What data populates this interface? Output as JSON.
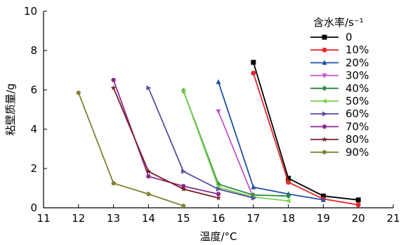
{
  "chart_data": {
    "type": "line",
    "title": "",
    "xlabel": "温度/°C",
    "ylabel": "粘壁质量/g",
    "xlim": [
      11,
      21
    ],
    "ylim": [
      0,
      10
    ],
    "xticks": [
      11,
      12,
      13,
      14,
      15,
      16,
      17,
      18,
      19,
      20,
      21
    ],
    "yticks": [
      0,
      2,
      4,
      6,
      8,
      10
    ],
    "grid": false,
    "legend": {
      "title": "含水率/s⁻¹",
      "placement": "right"
    },
    "series": [
      {
        "name": "0",
        "color": "#000000",
        "marker": "square",
        "x": [
          17,
          18,
          19,
          20
        ],
        "y": [
          7.4,
          1.5,
          0.6,
          0.4
        ]
      },
      {
        "name": "10%",
        "color": "#e8262a",
        "marker": "circle",
        "x": [
          17,
          18,
          19,
          20
        ],
        "y": [
          6.85,
          1.3,
          0.45,
          0.15
        ]
      },
      {
        "name": "20%",
        "color": "#2150a6",
        "marker": "triangle-up",
        "x": [
          16,
          17,
          18,
          19
        ],
        "y": [
          6.4,
          1.05,
          0.7,
          0.4
        ]
      },
      {
        "name": "30%",
        "color": "#c455c6",
        "marker": "triangle-down",
        "x": [
          16,
          17
        ],
        "y": [
          4.9,
          0.5
        ]
      },
      {
        "name": "40%",
        "color": "#2a8a3c",
        "marker": "diamond",
        "x": [
          15,
          16,
          17,
          18
        ],
        "y": [
          5.95,
          1.2,
          0.65,
          0.6
        ]
      },
      {
        "name": "50%",
        "color": "#7cd04e",
        "marker": "triangle-left",
        "x": [
          15,
          16,
          17,
          18
        ],
        "y": [
          5.95,
          1.05,
          0.55,
          0.35
        ]
      },
      {
        "name": "60%",
        "color": "#5a4ea8",
        "marker": "triangle-right",
        "x": [
          14,
          15,
          16,
          17
        ],
        "y": [
          6.1,
          1.85,
          0.95,
          0.5
        ]
      },
      {
        "name": "70%",
        "color": "#8e2a92",
        "marker": "hexagon",
        "x": [
          13,
          14,
          15,
          16
        ],
        "y": [
          6.5,
          1.6,
          1.1,
          0.7
        ]
      },
      {
        "name": "80%",
        "color": "#7a1a24",
        "marker": "star",
        "x": [
          13,
          14,
          15,
          16
        ],
        "y": [
          6.1,
          1.85,
          0.95,
          0.5
        ]
      },
      {
        "name": "90%",
        "color": "#808030",
        "marker": "pentagon",
        "x": [
          12,
          13,
          14,
          15
        ],
        "y": [
          5.85,
          1.25,
          0.7,
          0.1
        ]
      }
    ]
  }
}
